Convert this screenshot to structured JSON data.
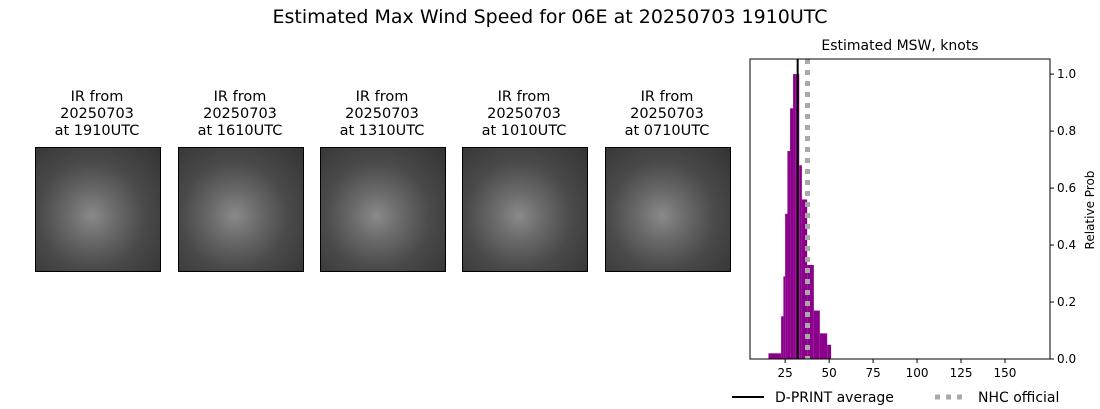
{
  "title": "Estimated Max Wind Speed for 06E at 20250703 1910UTC",
  "ir_panels": [
    {
      "line1": "IR from",
      "line2": "20250703",
      "line3": "at 1910UTC"
    },
    {
      "line1": "IR from",
      "line2": "20250703",
      "line3": "at 1610UTC"
    },
    {
      "line1": "IR from",
      "line2": "20250703",
      "line3": "at 1310UTC"
    },
    {
      "line1": "IR from",
      "line2": "20250703",
      "line3": "at 1010UTC"
    },
    {
      "line1": "IR from",
      "line2": "20250703",
      "line3": "at 0710UTC"
    }
  ],
  "chart_data": {
    "type": "bar",
    "title": "Estimated MSW, knots",
    "ylabel": "Relative Prob",
    "xlim": [
      5,
      175.6
    ],
    "ylim": [
      0,
      1.053
    ],
    "xticks": [
      25,
      50,
      75,
      100,
      125,
      150
    ],
    "yticks": [
      0.0,
      0.2,
      0.4,
      0.6,
      0.8,
      1.0
    ],
    "bar_color": "#8b008b",
    "bins": [
      {
        "x0": 15.5,
        "x1": 22.7,
        "value": 0.02
      },
      {
        "x0": 22.7,
        "x1": 24.0,
        "value": 0.15
      },
      {
        "x0": 24.0,
        "x1": 25.0,
        "value": 0.29
      },
      {
        "x0": 25.0,
        "x1": 26.3,
        "value": 0.51
      },
      {
        "x0": 26.3,
        "x1": 27.8,
        "value": 0.73
      },
      {
        "x0": 27.8,
        "x1": 29.5,
        "value": 0.88
      },
      {
        "x0": 29.5,
        "x1": 30.7,
        "value": 1.0
      },
      {
        "x0": 30.7,
        "x1": 33.0,
        "value": 1.0
      },
      {
        "x0": 33.0,
        "x1": 34.5,
        "value": 0.68
      },
      {
        "x0": 34.5,
        "x1": 37.5,
        "value": 0.56
      },
      {
        "x0": 37.5,
        "x1": 41.3,
        "value": 0.33
      },
      {
        "x0": 41.3,
        "x1": 44.7,
        "value": 0.17
      },
      {
        "x0": 44.7,
        "x1": 48.9,
        "value": 0.09
      },
      {
        "x0": 48.9,
        "x1": 51.1,
        "value": 0.05
      }
    ],
    "lines": [
      {
        "name": "D-PRINT average",
        "x": 32.1,
        "color": "#000000",
        "style": "solid"
      },
      {
        "name": "NHC official",
        "x": 37.7,
        "color": "#a9a9a9",
        "style": "dotted"
      }
    ],
    "legend": "bottom"
  }
}
